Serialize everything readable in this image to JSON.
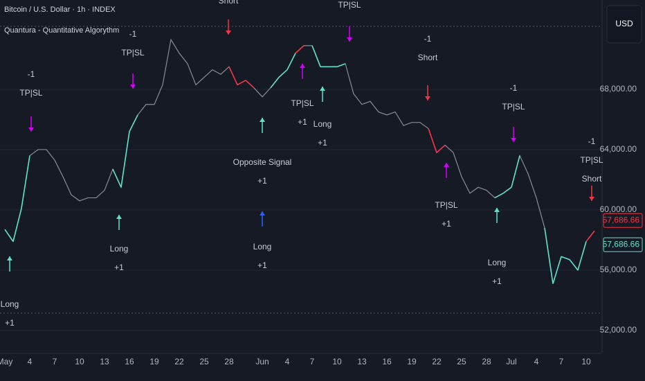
{
  "chart_data": {
    "type": "line",
    "title": "Bitcoin / U.S. Dollar · 1h · INDEX",
    "subtitle": "Quantura - Quantitative Algorythm",
    "currency_button": "USD",
    "categories": [
      "May",
      null,
      null,
      "4",
      null,
      null,
      "7",
      null,
      null,
      "10",
      null,
      null,
      "13",
      null,
      null,
      "16",
      null,
      null,
      "19",
      null,
      null,
      "22",
      null,
      null,
      "25",
      null,
      null,
      "28",
      null,
      null,
      null,
      "Jun",
      null,
      null,
      "4",
      null,
      null,
      "7",
      null,
      null,
      "10",
      null,
      null,
      "13",
      null,
      null,
      "16",
      null,
      null,
      "19",
      null,
      null,
      "22",
      null,
      null,
      "25",
      null,
      null,
      "28",
      null,
      null,
      "Jul",
      null,
      null,
      "4",
      null,
      null,
      "7",
      null,
      null,
      "10",
      null
    ],
    "values": [
      58700,
      57900,
      60100,
      63600,
      64000,
      64000,
      63300,
      62200,
      61000,
      60600,
      60800,
      60800,
      61300,
      62700,
      61500,
      65200,
      66300,
      67000,
      67000,
      68300,
      71300,
      70400,
      69700,
      68300,
      68800,
      69300,
      69000,
      69500,
      68300,
      68600,
      68100,
      67500,
      68100,
      68800,
      69300,
      70400,
      70900,
      70900,
      69500,
      69500,
      69500,
      69700,
      67700,
      67000,
      67200,
      66500,
      66300,
      66500,
      65600,
      65800,
      65800,
      65400,
      63800,
      64300,
      63800,
      62200,
      61100,
      61500,
      61300,
      60800,
      61100,
      61500,
      63600,
      62400,
      60800,
      58800,
      55100,
      56900,
      56700,
      56000,
      57900,
      58600
    ],
    "colors": [
      "#5fe3c8",
      "#5fe3c8",
      "#5fe3c8",
      "#5fe3c8",
      "#8a8d96",
      "#8a8d96",
      "#8a8d96",
      "#8a8d96",
      "#8a8d96",
      "#8a8d96",
      "#8a8d96",
      "#8a8d96",
      "#8a8d96",
      "#8a8d96",
      "#5fe3c8",
      "#5fe3c8",
      "#5fe3c8",
      "#8a8d96",
      "#8a8d96",
      "#8a8d96",
      "#8a8d96",
      "#8a8d96",
      "#8a8d96",
      "#8a8d96",
      "#8a8d96",
      "#8a8d96",
      "#8a8d96",
      "#8a8d96",
      "#f23645",
      "#f23645",
      "#f23645",
      "#8a8d96",
      "#8a8d96",
      "#5fe3c8",
      "#5fe3c8",
      "#5fe3c8",
      "#f23645",
      "#8a8d96",
      "#5fe3c8",
      "#5fe3c8",
      "#5fe3c8",
      "#5fe3c8",
      "#8a8d96",
      "#8a8d96",
      "#8a8d96",
      "#8a8d96",
      "#8a8d96",
      "#8a8d96",
      "#8a8d96",
      "#8a8d96",
      "#8a8d96",
      "#8a8d96",
      "#f23645",
      "#f23645",
      "#8a8d96",
      "#8a8d96",
      "#8a8d96",
      "#8a8d96",
      "#8a8d96",
      "#8a8d96",
      "#5fe3c8",
      "#5fe3c8",
      "#5fe3c8",
      "#8a8d96",
      "#8a8d96",
      "#8a8d96",
      "#5fe3c8",
      "#5fe3c8",
      "#5fe3c8",
      "#5fe3c8",
      "#5fe3c8",
      "#f23645"
    ],
    "ylim": [
      50480,
      73930
    ],
    "yticks": [
      {
        "value": 52000,
        "label": "52,000.00"
      },
      {
        "value": 56000,
        "label": "56,000.00"
      },
      {
        "value": 60000,
        "label": "60,000.00"
      },
      {
        "value": 64000,
        "label": "64,000.00"
      },
      {
        "value": 68000,
        "label": "68,000.00"
      }
    ],
    "grid": true,
    "price_labels": [
      {
        "value": 57686.66,
        "label": "57,686.66",
        "color": "#f23645"
      },
      {
        "value": 57686.66,
        "label": "57,686.66",
        "color": "#5fe3c8"
      }
    ],
    "annotations": [
      {
        "lines": [
          "Long",
          "+1"
        ],
        "color": "#5fe3c8"
      },
      {
        "lines": [
          "-1",
          "TP|SL"
        ],
        "color": "#d500f9"
      },
      {
        "lines": [
          "Long",
          "+1"
        ],
        "color": "#5fe3c8"
      },
      {
        "lines": [
          "-1",
          "TP|SL"
        ],
        "color": "#d500f9"
      },
      {
        "lines": [
          "Short"
        ],
        "color": "#f23645"
      },
      {
        "lines": [
          "Opposite Signal",
          "+1"
        ],
        "color": "#5fe3c8"
      },
      {
        "lines": [
          "Long",
          "+1"
        ],
        "color": "#2962ff"
      },
      {
        "lines": [
          "TP|SL",
          "+1"
        ],
        "color": "#d500f9"
      },
      {
        "lines": [
          "Long",
          "+1"
        ],
        "color": "#5fe3c8"
      },
      {
        "lines": [
          "TP|SL"
        ],
        "color": "#d500f9"
      },
      {
        "lines": [
          "-1",
          "Short"
        ],
        "color": "#f23645"
      },
      {
        "lines": [
          "TP|SL",
          "+1"
        ],
        "color": "#d500f9"
      },
      {
        "lines": [
          "-1",
          "TP|SL"
        ],
        "color": "#d500f9"
      },
      {
        "lines": [
          "Long",
          "+1"
        ],
        "color": "#5fe3c8"
      },
      {
        "lines": [
          "-1",
          "TP|SL",
          "Short"
        ],
        "color": "#f23645"
      }
    ]
  }
}
